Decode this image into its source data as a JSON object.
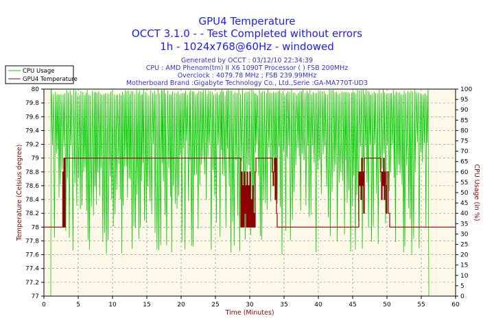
{
  "page": {
    "title_lines": [
      "GPU4 Temperature",
      "OCCT 3.1.0 -  - Test Completed without errors",
      "1h - 1024x768@60Hz - windowed"
    ],
    "info_lines": [
      "Generated by OCCT : 03/12/10 22:34:39",
      "CPU : AMD Phenom(tm) II X6 1090T Processor (  ) FSB 200MHz",
      "Overclock : 4079.78 MHz ; FSB 239.99MHz",
      "Motherboard Brand :Gigabyte Technology Co., Ltd.,Serie :GA-MA770T-UD3"
    ]
  },
  "chart_data": {
    "type": "line",
    "title": "GPU4 Temperature",
    "xlabel": "Time (Minutes)",
    "ylabel": "Temperature (Celsius degree)",
    "y2label": "CPU Usage (in %)",
    "xlim": [
      0,
      60
    ],
    "ylim": [
      77,
      80
    ],
    "y2lim": [
      0,
      100
    ],
    "grid": true,
    "legend_position": "top-left",
    "x_ticks": [
      "0",
      "5",
      "10",
      "15",
      "20",
      "25",
      "30",
      "35",
      "40",
      "45",
      "50",
      "55",
      "60"
    ],
    "y_ticks": [
      "77",
      "77.2",
      "77.4",
      "77.6",
      "77.8",
      "78",
      "78.2",
      "78.4",
      "78.6",
      "78.8",
      "79",
      "79.2",
      "79.4",
      "79.6",
      "79.8",
      "80"
    ],
    "y2_ticks": [
      "0",
      "5",
      "10",
      "15",
      "20",
      "25",
      "30",
      "35",
      "40",
      "45",
      "50",
      "55",
      "60",
      "65",
      "70",
      "75",
      "80",
      "85",
      "90",
      "95",
      "100"
    ],
    "series": [
      {
        "name": "CPU Usage",
        "axis": "right",
        "color": "#00cc00",
        "pattern": "oscillating",
        "x_range": [
          1.0,
          56.0
        ],
        "values_min": 20,
        "values_max": 100,
        "start_value": 0,
        "end_value": 0
      },
      {
        "name": "GPU4 Temperature",
        "axis": "left",
        "color": "#8b0000",
        "x": [
          0,
          2.6,
          2.75,
          2.8,
          2.9,
          3.0,
          3.1,
          3.2,
          28.6,
          28.7,
          28.8,
          28.9,
          29.0,
          29.1,
          29.2,
          29.3,
          29.4,
          29.5,
          29.6,
          29.7,
          29.8,
          29.9,
          30.0,
          30.1,
          30.2,
          30.3,
          30.4,
          30.5,
          30.6,
          30.7,
          30.8,
          30.9,
          31.0,
          31.2,
          33.2,
          33.3,
          33.4,
          33.5,
          33.6,
          33.7,
          33.8,
          33.9,
          34.0,
          45.8,
          45.9,
          46.0,
          46.1,
          46.2,
          46.3,
          46.4,
          46.5,
          46.6,
          46.7,
          47.2,
          48.8,
          49.0,
          49.1,
          49.2,
          49.3,
          49.4,
          49.5,
          49.6,
          49.7,
          49.8,
          49.9,
          50.0,
          50.2,
          50.4,
          60
        ],
        "values": [
          78,
          78,
          78.8,
          78,
          79,
          78,
          79,
          79,
          79,
          78,
          78.8,
          78,
          78.6,
          78,
          78.8,
          78.2,
          78.6,
          78,
          78.8,
          78,
          78.6,
          78,
          78.8,
          78,
          78.4,
          78,
          78.6,
          78,
          78.2,
          78,
          78.8,
          79,
          79,
          79,
          79,
          78.8,
          78.6,
          78.8,
          79,
          78.4,
          79,
          78.2,
          78,
          78,
          78.8,
          78.6,
          78.8,
          78.4,
          79,
          78.6,
          78.8,
          78.2,
          79,
          79,
          79,
          79,
          78.8,
          78.4,
          78.8,
          78.6,
          79,
          78.4,
          78.8,
          78.6,
          78.2,
          78.8,
          78.2,
          78,
          78
        ]
      }
    ]
  }
}
